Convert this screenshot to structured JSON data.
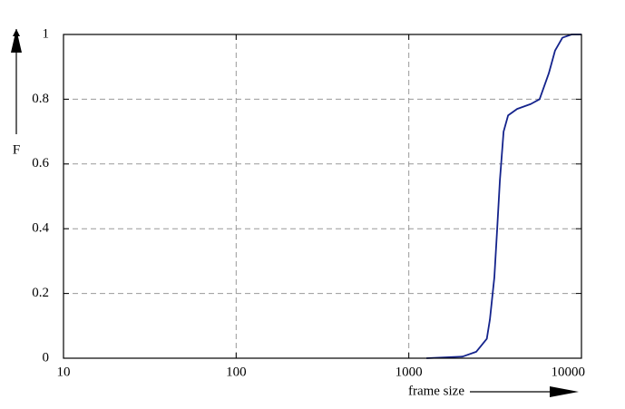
{
  "chart_data": {
    "type": "line",
    "x_label": "frame size",
    "y_label": "F",
    "log_x": true,
    "grid": true,
    "xlim": [
      10,
      10000
    ],
    "xticks": [
      10,
      100,
      1000,
      10000
    ],
    "ylim": [
      0,
      1
    ],
    "yticks": [
      0,
      0.2,
      0.4,
      0.6,
      0.8,
      1
    ],
    "x": [
      1265,
      2050,
      2460,
      2830,
      2950,
      3130,
      3250,
      3370,
      3540,
      3760,
      4240,
      5080,
      5720,
      6470,
      7030,
      7760,
      8770,
      10000
    ],
    "series": [
      {
        "color": "#14238c",
        "values": [
          0,
          0.005,
          0.02,
          0.06,
          0.12,
          0.25,
          0.4,
          0.55,
          0.7,
          0.75,
          0.77,
          0.785,
          0.8,
          0.88,
          0.95,
          0.99,
          1,
          1
        ]
      }
    ]
  }
}
